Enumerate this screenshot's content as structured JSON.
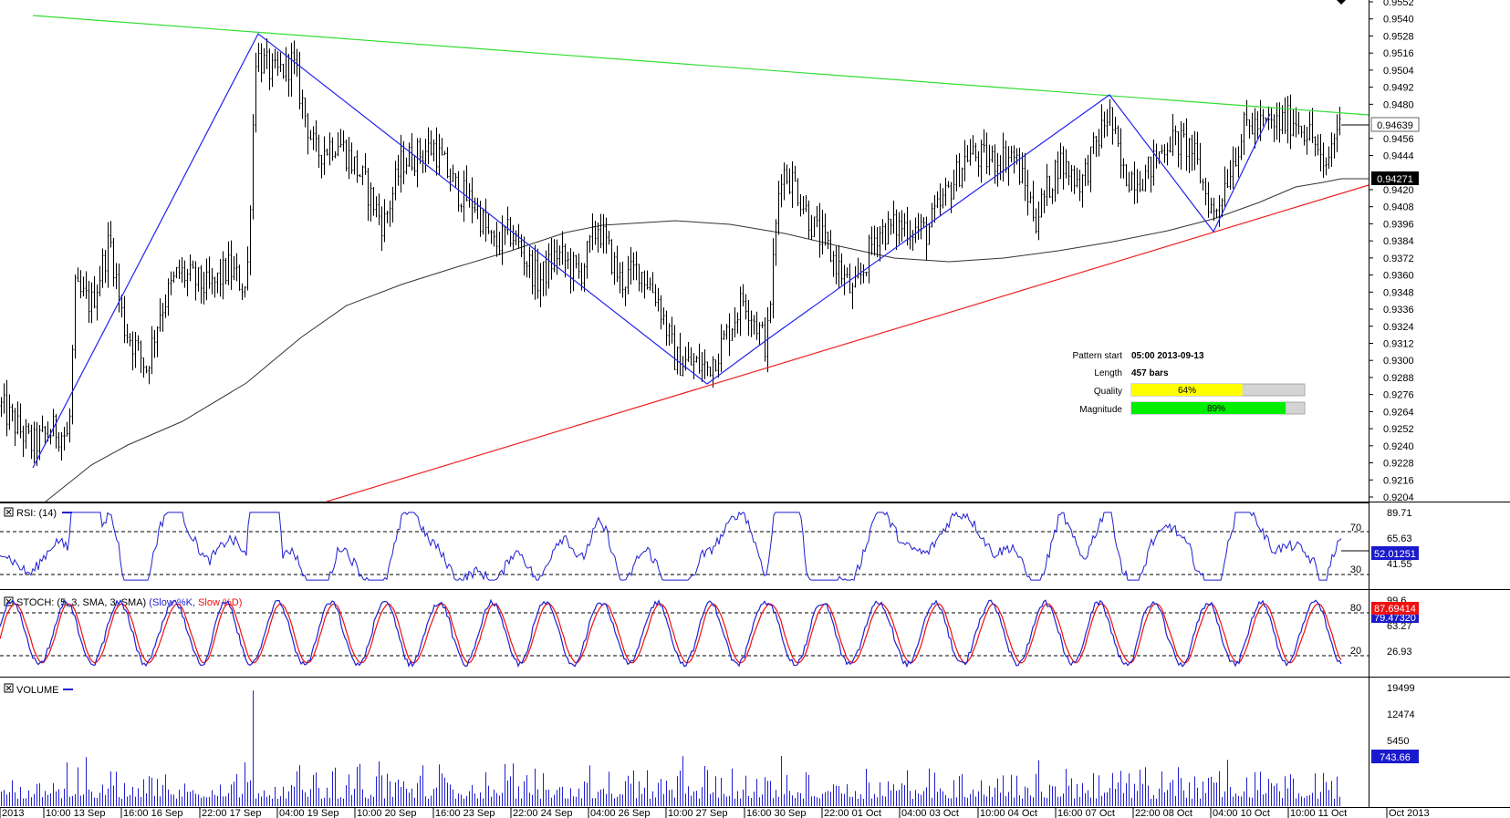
{
  "colors": {
    "price_bars": "#000000",
    "resistance": "#33dd33",
    "support": "#ee2222",
    "zigzag": "#2222ee",
    "moving_average": "#333333",
    "rsi_line": "#1f1fd0",
    "stoch_k": "#1f1fd0",
    "stoch_d": "#ee1111",
    "volume": "#1f1fd0",
    "quality_fill": "#ffff00",
    "magnitude_fill": "#00ee00",
    "bar_bg": "#d4d4d4"
  },
  "price_panel": {
    "y_ticks": [
      "0.9552",
      "0.9540",
      "0.9528",
      "0.9516",
      "0.9504",
      "0.9492",
      "0.9480",
      "0.9456",
      "0.9444",
      "0.9420",
      "0.9408",
      "0.9396",
      "0.9384",
      "0.9372",
      "0.9360",
      "0.9348",
      "0.9336",
      "0.9324",
      "0.9312",
      "0.9300",
      "0.9288",
      "0.9276",
      "0.9264",
      "0.9252",
      "0.9240",
      "0.9228",
      "0.9216",
      "0.9204"
    ],
    "price_label": "0.94639",
    "ma_label": "0.94271"
  },
  "info": {
    "pattern_start_label": "Pattern start",
    "pattern_start_value": "05:00 2013-09-13",
    "length_label": "Length",
    "length_value": "457 bars",
    "quality_label": "Quality",
    "quality_value": "64%",
    "quality_pct": 64,
    "magnitude_label": "Magnitude",
    "magnitude_value": "89%",
    "magnitude_pct": 89
  },
  "rsi": {
    "title": "RSI: (14)",
    "y_ticks": [
      "89.71",
      "65.63",
      "41.55"
    ],
    "level_70": "70",
    "level_30": "30",
    "value_label": "52.01251"
  },
  "stoch": {
    "title_prefix": "STOCH: (5, 3, SMA, 3, SMA)",
    "k_label": "(Slow %K,",
    "d_label": "Slow %D)",
    "y_ticks": [
      "99.6",
      "63.27",
      "26.93"
    ],
    "level_80": "80",
    "level_20": "20",
    "k_value_label": "87.69414",
    "d_value_label": "79.47320"
  },
  "volume": {
    "title": "VOLUME",
    "y_ticks": [
      "19499",
      "12474",
      "5450"
    ],
    "value_label": "743.66"
  },
  "x_axis": {
    "labels": [
      "2013",
      "10:00 13 Sep",
      "16:00 16 Sep",
      "22:00 17 Sep",
      "04:00 19 Sep",
      "10:00 20 Sep",
      "16:00 23 Sep",
      "22:00 24 Sep",
      "04:00 26 Sep",
      "10:00 27 Sep",
      "16:00 30 Sep",
      "22:00 01 Oct",
      "04:00 03 Oct",
      "10:00 04 Oct",
      "16:00 07 Oct",
      "22:00 08 Oct",
      "04:00 10 Oct",
      "10:00 11 Oct",
      "Oct 2013"
    ]
  },
  "chart_data": {
    "type": "line",
    "title": "",
    "series": [
      {
        "name": "RSI: (14)",
        "levels": [
          30,
          70
        ],
        "last": 52.01251
      },
      {
        "name": "Slow %K",
        "last": 87.69414
      },
      {
        "name": "Slow %D",
        "last": 79.4732
      },
      {
        "name": "VOLUME",
        "last": 743.66
      }
    ],
    "price": {
      "last": 0.94639,
      "moving_average_last": 0.94271,
      "ylim": [
        0.9204,
        0.9552
      ],
      "zigzag_points": [
        {
          "x": "13 Sep",
          "y": 0.9226
        },
        {
          "x": "18 Sep",
          "y": 0.9528
        },
        {
          "x": "27 Sep",
          "y": 0.9284
        },
        {
          "x": "30 Sep",
          "y": 0.9309
        },
        {
          "x": "07 Oct",
          "y": 0.9484
        },
        {
          "x": "09 Oct",
          "y": 0.9392
        }
      ],
      "resistance_line": [
        {
          "x": "13 Sep",
          "y": 0.9544
        },
        {
          "x": "11 Oct",
          "y": 0.947
        }
      ],
      "support_line": [
        {
          "x": "16 Sep",
          "y": 0.9204
        },
        {
          "x": "11 Oct",
          "y": 0.9423
        }
      ]
    },
    "ylim_rsi": [
      17,
      90
    ],
    "ylim_stoch": [
      0,
      100
    ],
    "ylim_volume": [
      0,
      19499
    ]
  }
}
